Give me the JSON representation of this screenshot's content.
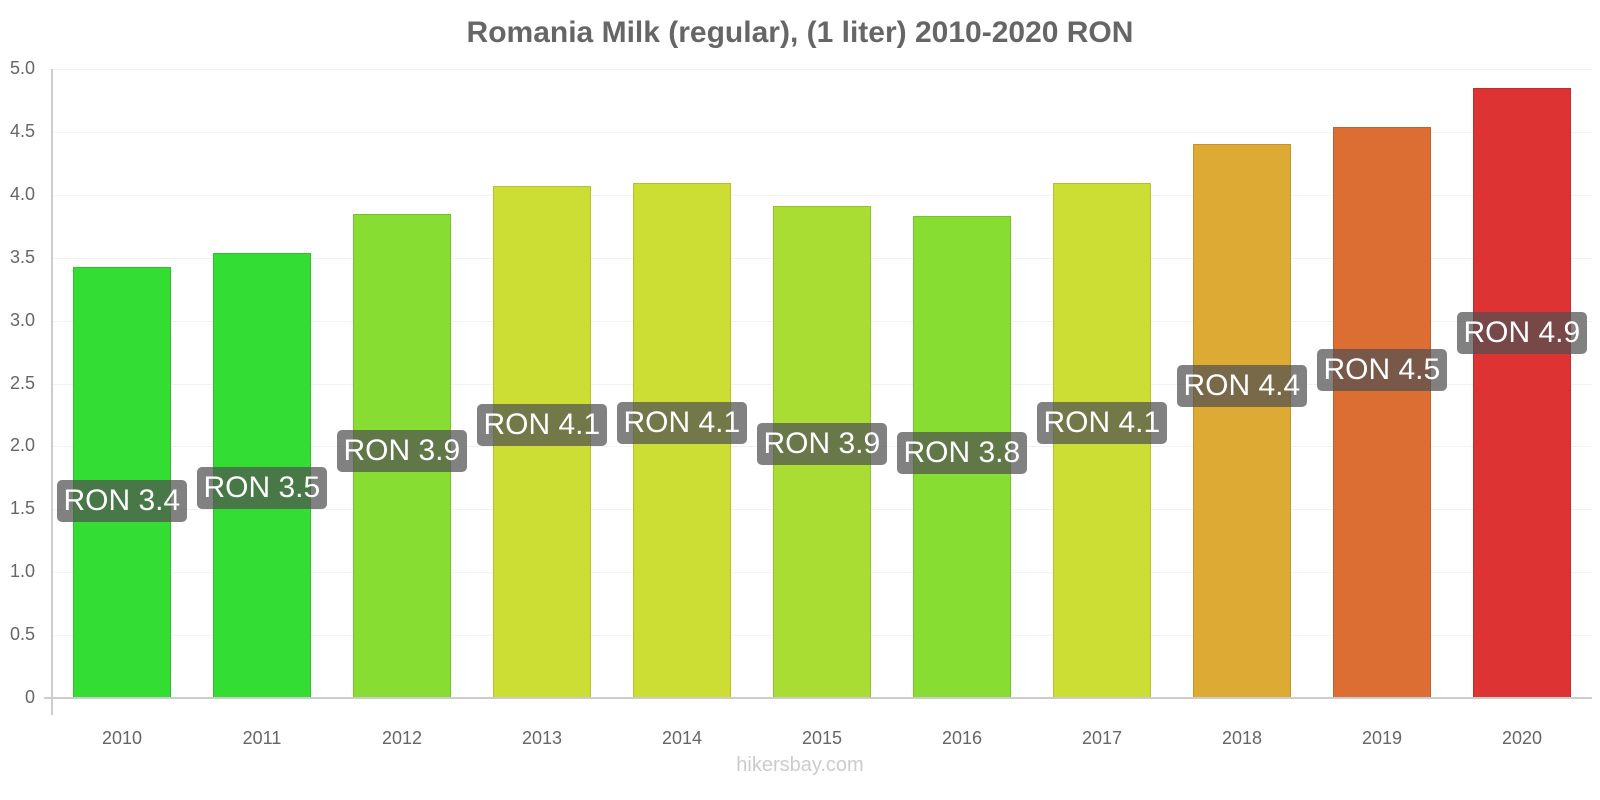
{
  "chart_data": {
    "type": "bar",
    "title": "Romania Milk (regular), (1 liter) 2010-2020 RON",
    "xlabel": "",
    "ylabel": "",
    "ylim": [
      0,
      5.0
    ],
    "grid": true,
    "legend": null,
    "yticks": [
      "0",
      "0.5",
      "1.0",
      "1.5",
      "2.0",
      "2.5",
      "3.0",
      "3.5",
      "4.0",
      "4.5",
      "5.0"
    ],
    "categories": [
      "2010",
      "2011",
      "2012",
      "2013",
      "2014",
      "2015",
      "2016",
      "2017",
      "2018",
      "2019",
      "2020"
    ],
    "values": [
      3.43,
      3.54,
      3.85,
      4.07,
      4.09,
      3.91,
      3.83,
      4.09,
      4.4,
      4.54,
      4.85
    ],
    "data_labels": [
      "RON 3.4",
      "RON 3.5",
      "RON 3.9",
      "RON 4.1",
      "RON 4.1",
      "RON 3.9",
      "RON 3.8",
      "RON 4.1",
      "RON 4.4",
      "RON 4.5",
      "RON 4.9"
    ],
    "colors": [
      "#33dd33",
      "#33dd33",
      "#88dd33",
      "#ccdd33",
      "#ccdd33",
      "#aadd33",
      "#88dd33",
      "#ccdd33",
      "#ddaa33",
      "#dd6e33",
      "#dd3333"
    ]
  },
  "watermark": "hikersbay.com"
}
